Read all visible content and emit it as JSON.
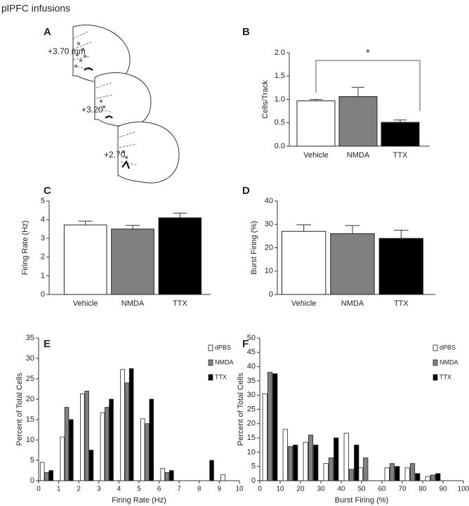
{
  "title": "plPFC infusions",
  "panel_a": {
    "label": "A",
    "sections": [
      "+3.70 mm",
      "+3.20",
      "+2.70"
    ]
  },
  "chart_data": [
    {
      "type": "bar",
      "panel": "B",
      "ylabel": "Cells/Track",
      "categories": [
        "Vehicle",
        "NMDA",
        "TTX"
      ],
      "values": [
        0.97,
        1.06,
        0.51
      ],
      "errors": [
        0.03,
        0.2,
        0.05
      ],
      "colors": [
        "#ffffff",
        "#808080",
        "#000000"
      ],
      "annotation": "*",
      "ylim": [
        0,
        2
      ],
      "yticks": [
        {
          "value": 0,
          "label": "0.0"
        },
        0.5,
        {
          "value": 1,
          "label": "1.0"
        },
        1.5,
        {
          "value": 2,
          "label": "2.0"
        }
      ]
    },
    {
      "type": "bar",
      "panel": "C",
      "ylabel": "Firing Rate (Hz)",
      "categories": [
        "Vehicle",
        "NMDA",
        "TTX"
      ],
      "values": [
        3.72,
        3.5,
        4.1
      ],
      "errors": [
        0.2,
        0.2,
        0.25
      ],
      "colors": [
        "#ffffff",
        "#808080",
        "#000000"
      ],
      "ylim": [
        0,
        5
      ],
      "yticks": [
        0,
        1,
        2,
        3,
        4,
        5
      ]
    },
    {
      "type": "bar",
      "panel": "D",
      "ylabel": "Burst Firing (%)",
      "categories": [
        "Vehicle",
        "NMDA",
        "TTX"
      ],
      "values": [
        27,
        26,
        24
      ],
      "errors": [
        2.8,
        3.5,
        3.5
      ],
      "colors": [
        "#ffffff",
        "#808080",
        "#000000"
      ],
      "ylim": [
        0,
        40
      ],
      "yticks": [
        0,
        10,
        20,
        30,
        40
      ]
    },
    {
      "type": "grouped_bar",
      "panel": "E",
      "xlabel": "Firing Rate (Hz)",
      "ylabel": "Percent of Total Cells",
      "x": [
        0.4,
        1.4,
        2.4,
        3.4,
        4.4,
        5.4,
        6.4,
        7.4,
        8.4,
        9.4
      ],
      "series": [
        {
          "name": "dPBS",
          "color": "#ffffff",
          "values": [
            4.5,
            10.7,
            21.3,
            16.7,
            27.3,
            15.2,
            3,
            0,
            0,
            1.5
          ]
        },
        {
          "name": "NMDA",
          "color": "#808080",
          "values": [
            2,
            18,
            22,
            18,
            24,
            14,
            2,
            0,
            0,
            0
          ]
        },
        {
          "name": "TTX",
          "color": "#000000",
          "values": [
            2.5,
            15,
            7.5,
            20,
            27.5,
            20,
            2.5,
            0,
            5,
            0
          ]
        }
      ],
      "xlim": [
        0,
        10
      ],
      "xticks": [
        0,
        1,
        2,
        3,
        4,
        5,
        6,
        7,
        8,
        9,
        10
      ],
      "ylim": [
        0,
        35
      ],
      "yticks": [
        0,
        5,
        10,
        15,
        20,
        25,
        30,
        35
      ]
    },
    {
      "type": "grouped_bar",
      "panel": "F",
      "xlabel": "Burst Firing (%)",
      "ylabel": "Percent of Total Cells",
      "x": [
        5,
        15,
        25,
        35,
        45,
        52,
        65,
        75,
        85
      ],
      "series": [
        {
          "name": "dPBS",
          "color": "#ffffff",
          "values": [
            30.5,
            18,
            13.5,
            6,
            16.7,
            4.5,
            4.5,
            4.5,
            1.5
          ]
        },
        {
          "name": "NMDA",
          "color": "#808080",
          "values": [
            38,
            12,
            16,
            8,
            4,
            8,
            6,
            6,
            2
          ]
        },
        {
          "name": "TTX",
          "color": "#000000",
          "values": [
            37.5,
            12.5,
            12.5,
            15,
            12.5,
            0,
            5,
            2.5,
            2.5
          ]
        }
      ],
      "xlim": [
        0,
        100
      ],
      "xticks": [
        0,
        10,
        20,
        30,
        40,
        50,
        60,
        70,
        80,
        90,
        100
      ],
      "ylim": [
        0,
        50
      ],
      "yticks": [
        0,
        5,
        10,
        15,
        20,
        25,
        30,
        35,
        40,
        45,
        50
      ]
    }
  ]
}
